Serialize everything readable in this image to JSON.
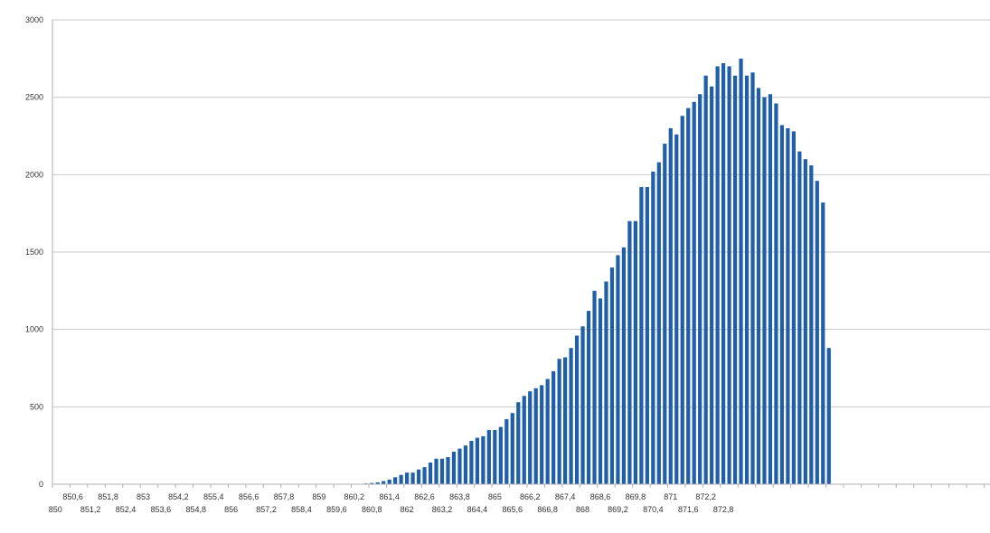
{
  "chart_data": {
    "type": "bar",
    "title": "",
    "xlabel": "",
    "ylabel": "",
    "ylim": [
      0,
      3000
    ],
    "grid": true,
    "legend": "none",
    "bar_color": "#1f5ea8",
    "grid_color": "#c8c8c8",
    "axis_color": "#b0b0b0",
    "y_ticks": [
      "0",
      "500",
      "1000",
      "1500",
      "2000",
      "2500",
      "3000"
    ],
    "x_tick_labels": {
      "row1": [
        "850,6",
        "851,8",
        "853",
        "854,2",
        "855,4",
        "856,6",
        "857,8",
        "859",
        "860,2",
        "861,4",
        "862,6",
        "863,8",
        "865",
        "866,2",
        "867,4",
        "868,6",
        "869,8",
        "871",
        "872,2"
      ],
      "row2": [
        "850",
        "851,2",
        "852,4",
        "853,6",
        "854,8",
        "856",
        "857,2",
        "858,4",
        "859,6",
        "860,8",
        "862",
        "863,2",
        "864,4",
        "865,6",
        "866,8",
        "868",
        "869,2",
        "870,4",
        "871,6",
        "872,8"
      ]
    },
    "x_start": 850,
    "x_step": 0.2,
    "values": [
      0,
      0,
      0,
      0,
      0,
      0,
      0,
      0,
      0,
      0,
      0,
      0,
      0,
      0,
      0,
      0,
      0,
      0,
      0,
      0,
      0,
      0,
      0,
      0,
      0,
      0,
      0,
      0,
      0,
      0,
      0,
      0,
      0,
      0,
      0,
      0,
      0,
      0,
      0,
      0,
      0,
      0,
      0,
      0,
      0,
      0,
      0,
      0,
      0,
      0,
      0,
      2,
      3,
      5,
      8,
      12,
      20,
      30,
      45,
      60,
      75,
      75,
      95,
      110,
      140,
      165,
      165,
      175,
      210,
      230,
      250,
      280,
      300,
      310,
      350,
      350,
      370,
      420,
      460,
      530,
      570,
      600,
      620,
      640,
      680,
      730,
      810,
      820,
      880,
      960,
      1020,
      1120,
      1250,
      1200,
      1310,
      1400,
      1480,
      1530,
      1700,
      1700,
      1920,
      1920,
      2020,
      2080,
      2200,
      2300,
      2260,
      2380,
      2430,
      2470,
      2520,
      2640,
      2570,
      2700,
      2720,
      2700,
      2640,
      2750,
      2640,
      2660,
      2560,
      2500,
      2520,
      2460,
      2320,
      2300,
      2280,
      2150,
      2100,
      2060,
      1960,
      1820,
      880,
      0,
      0,
      0,
      0,
      0,
      0,
      0,
      0,
      0,
      0,
      0,
      0,
      0,
      0,
      0,
      0,
      0,
      0,
      0,
      0,
      0,
      0,
      0,
      0,
      0,
      0,
      0
    ]
  }
}
